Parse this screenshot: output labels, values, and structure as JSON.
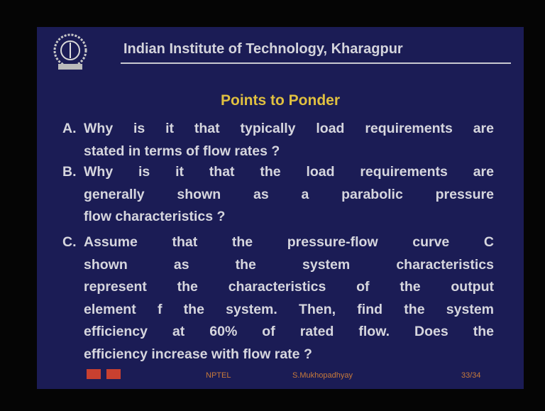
{
  "header": {
    "title": "Indian Institute of Technology, Kharagpur"
  },
  "heading": "Points to Ponder",
  "items": [
    {
      "label": "A.",
      "lines": [
        "Why is it that typically load requirements are",
        "stated in terms of flow rates ?"
      ]
    },
    {
      "label": "B.",
      "lines": [
        "Why is it that the load requirements are",
        "generally shown as a parabolic pressure",
        "flow characteristics ?"
      ]
    },
    {
      "label": "C.",
      "lines": [
        "Assume that the pressure-flow curve C",
        "shown as the system characteristics",
        "represent the characteristics of the output",
        "element f the system. Then, find the system",
        "efficiency at 60% of rated flow. Does the",
        "efficiency increase with flow rate ?"
      ]
    }
  ],
  "footer": {
    "course": "NPTEL",
    "author": "S.Mukhopadhyay",
    "page": "33/34"
  }
}
